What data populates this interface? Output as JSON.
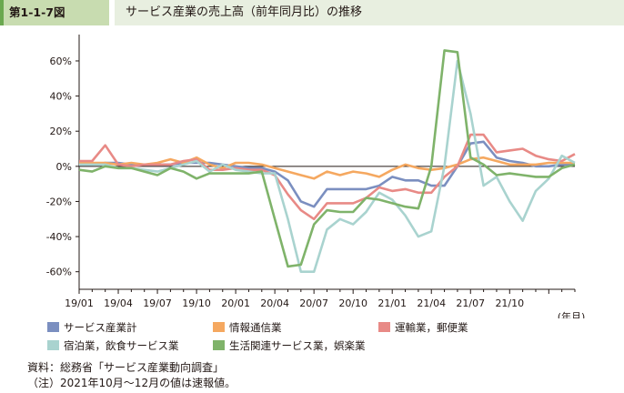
{
  "header": {
    "figure_no": "第1-1-7図",
    "title": "サービス産業の売上高（前年同月比）の推移"
  },
  "chart_data": {
    "type": "line",
    "title": "",
    "xlabel": "",
    "ylabel": "",
    "x_unit": "(年月)",
    "ylim": [
      -70,
      75
    ],
    "y_ticks": [
      60,
      40,
      20,
      0,
      -20,
      -40,
      -60
    ],
    "y_tick_labels": [
      "60%",
      "40%",
      "20%",
      "0%",
      "-20%",
      "-40%",
      "-60%"
    ],
    "x_tick_labels": [
      "19/01",
      "19/04",
      "19/07",
      "19/10",
      "20/01",
      "20/04",
      "20/07",
      "20/10",
      "21/01",
      "21/04",
      "21/07",
      "21/10"
    ],
    "x_tick_every": 3,
    "zero_line": true,
    "grid": false,
    "legend_position": "bottom",
    "series": [
      {
        "name": "サービス産業計",
        "color": "#7b8fc0",
        "values": [
          1,
          1,
          2,
          2,
          1,
          1,
          1,
          1,
          2,
          2,
          2,
          1,
          0,
          -1,
          -1,
          -3,
          -8,
          -20,
          -23,
          -13,
          -13,
          -13,
          -13,
          -11,
          -6,
          -8,
          -8,
          -11,
          -11,
          0,
          13,
          14,
          5,
          3,
          2,
          0,
          0,
          1,
          1
        ]
      },
      {
        "name": "情報通信業",
        "color": "#f5a860",
        "values": [
          2,
          2,
          2,
          1,
          2,
          1,
          2,
          4,
          2,
          5,
          1,
          -1,
          2,
          2,
          1,
          -1,
          -3,
          -5,
          -7,
          -3,
          -5,
          -3,
          -4,
          -6,
          -2,
          1,
          -1,
          -2,
          -1,
          1,
          4,
          5,
          3,
          1,
          1,
          1,
          2,
          2,
          2
        ]
      },
      {
        "name": "運輸業，郵便業",
        "color": "#e88a86",
        "values": [
          3,
          3,
          12,
          1,
          0,
          1,
          1,
          1,
          3,
          4,
          -2,
          -2,
          -1,
          -2,
          -2,
          -5,
          -16,
          -25,
          -30,
          -21,
          -21,
          -21,
          -18,
          -12,
          -14,
          -13,
          -15,
          -15,
          -6,
          0,
          18,
          18,
          8,
          9,
          10,
          6,
          4,
          3,
          7
        ]
      },
      {
        "name": "宿泊業，飲食サービス業",
        "color": "#a9d3cf",
        "values": [
          1,
          1,
          1,
          -1,
          -1,
          -2,
          -3,
          -1,
          1,
          3,
          -3,
          1,
          -2,
          -3,
          -4,
          -4,
          -30,
          -60,
          -60,
          -36,
          -30,
          -33,
          -26,
          -15,
          -19,
          -28,
          -40,
          -37,
          0,
          60,
          30,
          -11,
          -6,
          -20,
          -31,
          -14,
          -7,
          6,
          2
        ]
      },
      {
        "name": "生活関連サービス業，娯楽業",
        "color": "#7fb36a",
        "values": [
          -2,
          -3,
          0,
          -1,
          -1,
          -3,
          -5,
          -1,
          -3,
          -7,
          -4,
          -4,
          -4,
          -4,
          -3,
          -30,
          -57,
          -56,
          -33,
          -25,
          -26,
          -26,
          -18,
          -19,
          -21,
          -23,
          -24,
          0,
          66,
          65,
          5,
          1,
          -5,
          -4,
          -5,
          -6,
          -6,
          -1,
          1
        ]
      }
    ]
  },
  "source": {
    "line1": "資料：総務省「サービス産業動向調査」",
    "line2": "（注）2021年10月～12月の値は速報値。"
  }
}
